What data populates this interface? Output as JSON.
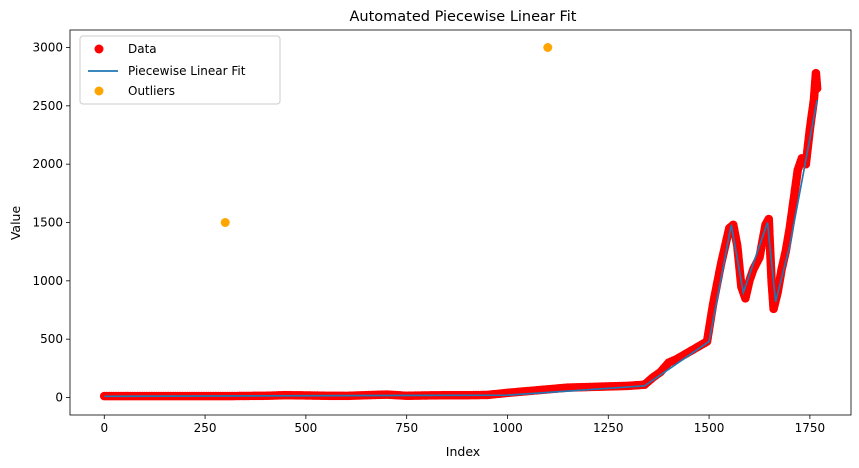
{
  "chart_data": {
    "type": "scatter",
    "title": "Automated Piecewise Linear Fit",
    "xlabel": "Index",
    "ylabel": "Value",
    "xlim": [
      -85,
      1852
    ],
    "ylim": [
      -150,
      3150
    ],
    "x_ticks": [
      0,
      250,
      500,
      750,
      1000,
      1250,
      1500,
      1750
    ],
    "y_ticks": [
      0,
      500,
      1000,
      1500,
      2000,
      2500,
      3000
    ],
    "grid": false,
    "legend_position": "top-left",
    "series": [
      {
        "name": "Data",
        "kind": "scatter",
        "color": "#ff0000",
        "note": "dense scatter approximated from the trend shape",
        "points": [
          [
            0,
            12
          ],
          [
            100,
            12
          ],
          [
            200,
            12
          ],
          [
            300,
            12
          ],
          [
            400,
            15
          ],
          [
            450,
            20
          ],
          [
            500,
            18
          ],
          [
            550,
            15
          ],
          [
            600,
            14
          ],
          [
            650,
            20
          ],
          [
            700,
            25
          ],
          [
            750,
            15
          ],
          [
            800,
            18
          ],
          [
            850,
            20
          ],
          [
            900,
            20
          ],
          [
            950,
            22
          ],
          [
            1000,
            40
          ],
          [
            1050,
            55
          ],
          [
            1100,
            70
          ],
          [
            1150,
            85
          ],
          [
            1200,
            90
          ],
          [
            1250,
            95
          ],
          [
            1300,
            100
          ],
          [
            1340,
            110
          ],
          [
            1360,
            170
          ],
          [
            1380,
            220
          ],
          [
            1400,
            300
          ],
          [
            1420,
            330
          ],
          [
            1440,
            370
          ],
          [
            1460,
            410
          ],
          [
            1480,
            450
          ],
          [
            1495,
            480
          ],
          [
            1510,
            800
          ],
          [
            1530,
            1150
          ],
          [
            1550,
            1450
          ],
          [
            1560,
            1480
          ],
          [
            1570,
            1300
          ],
          [
            1580,
            950
          ],
          [
            1590,
            850
          ],
          [
            1600,
            1000
          ],
          [
            1610,
            1100
          ],
          [
            1625,
            1200
          ],
          [
            1640,
            1480
          ],
          [
            1648,
            1530
          ],
          [
            1655,
            1000
          ],
          [
            1660,
            760
          ],
          [
            1670,
            900
          ],
          [
            1680,
            1100
          ],
          [
            1690,
            1250
          ],
          [
            1700,
            1450
          ],
          [
            1710,
            1700
          ],
          [
            1720,
            1950
          ],
          [
            1730,
            2050
          ],
          [
            1740,
            2000
          ],
          [
            1750,
            2300
          ],
          [
            1760,
            2550
          ],
          [
            1765,
            2780
          ],
          [
            1768,
            2650
          ]
        ]
      },
      {
        "name": "Piecewise Linear Fit",
        "kind": "line",
        "color": "#1f77b4",
        "points": [
          [
            0,
            10
          ],
          [
            1000,
            20
          ],
          [
            1340,
            100
          ],
          [
            1500,
            480
          ],
          [
            1555,
            1480
          ],
          [
            1585,
            900
          ],
          [
            1645,
            1500
          ],
          [
            1665,
            820
          ],
          [
            1700,
            1300
          ],
          [
            1768,
            2550
          ]
        ]
      },
      {
        "name": "Outliers",
        "kind": "scatter",
        "color": "#ffa500",
        "points": [
          [
            300,
            1500
          ],
          [
            1100,
            3000
          ]
        ]
      }
    ]
  }
}
